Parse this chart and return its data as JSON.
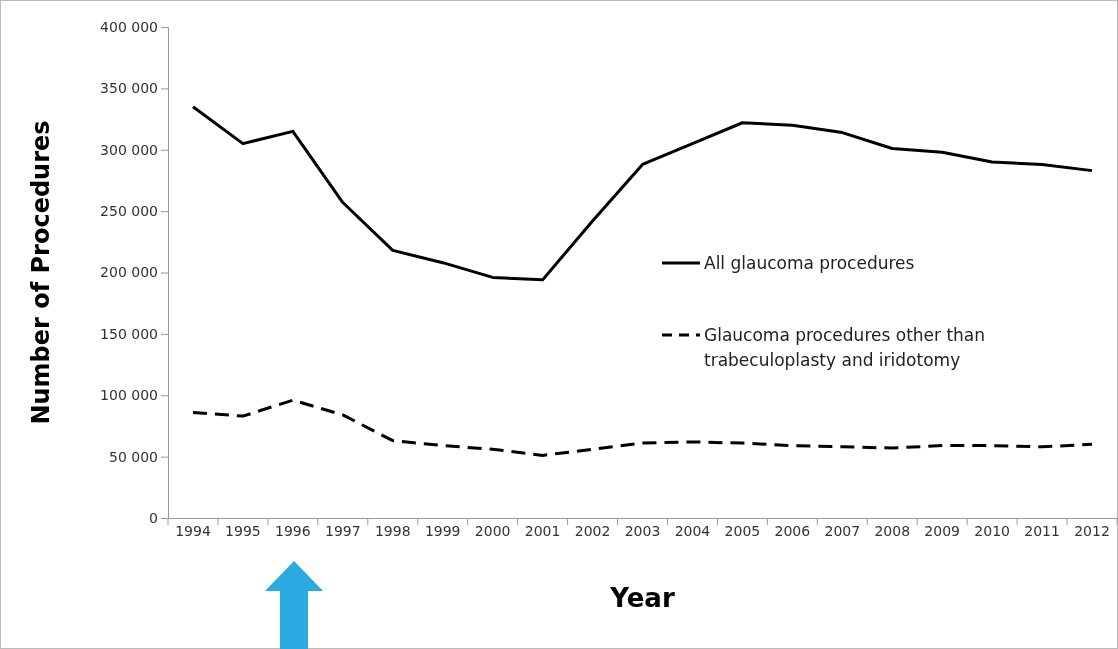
{
  "chart_data": {
    "type": "line",
    "xlabel": "Year",
    "ylabel": "Number of Procedures",
    "categories": [
      "1994",
      "1995",
      "1996",
      "1997",
      "1998",
      "1999",
      "2000",
      "2001",
      "2002",
      "2003",
      "2004",
      "2005",
      "2006",
      "2007",
      "2008",
      "2009",
      "2010",
      "2011",
      "2012"
    ],
    "series": [
      {
        "name": "All glaucoma procedures",
        "color": "#000000",
        "line_style": "solid",
        "values": [
          335000,
          305000,
          315000,
          257000,
          218000,
          208000,
          196000,
          194000,
          242000,
          288000,
          305000,
          322000,
          320000,
          314000,
          301000,
          298000,
          290000,
          288000,
          283000
        ]
      },
      {
        "name": "Glaucoma procedures other than trabeculoplasty and iridotomy",
        "color": "#000000",
        "line_style": "dashed",
        "values": [
          86000,
          83000,
          96000,
          84000,
          63000,
          59000,
          56000,
          51000,
          56000,
          61000,
          62000,
          61000,
          59000,
          58000,
          57000,
          59000,
          59000,
          58000,
          60000
        ]
      }
    ],
    "ylim": [
      0,
      400000
    ],
    "yticks": [
      {
        "value": 0,
        "label": "0"
      },
      {
        "value": 50000,
        "label": "50 000"
      },
      {
        "value": 100000,
        "label": "100 000"
      },
      {
        "value": 150000,
        "label": "150 000"
      },
      {
        "value": 200000,
        "label": "200 000"
      },
      {
        "value": 250000,
        "label": "250 000"
      },
      {
        "value": 300000,
        "label": "300 000"
      },
      {
        "value": 350000,
        "label": "350 000"
      },
      {
        "value": 400000,
        "label": "400 000"
      }
    ],
    "grid": false,
    "legend": "right",
    "marker": "none"
  }
}
